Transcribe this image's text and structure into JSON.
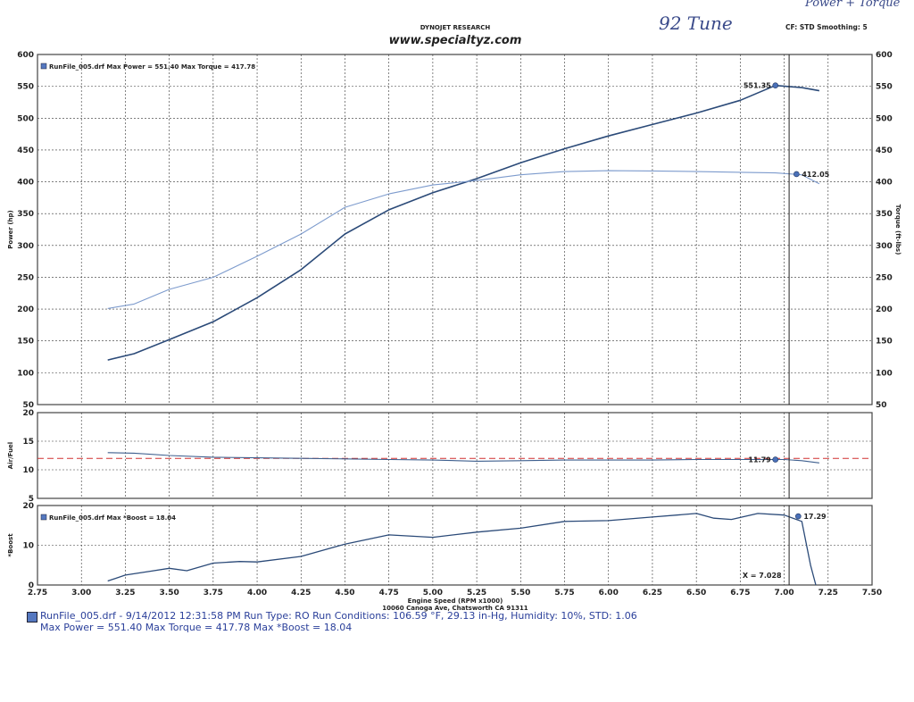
{
  "header": {
    "title": "DYNOJET RESEARCH",
    "website": "www.specialtyz.com",
    "settings": "CF: STD  Smoothing: 5",
    "handwritten_label": "92 Tune",
    "handwritten_note": "Power + Torque"
  },
  "footer": {
    "line1": "RunFile_005.drf - 9/14/2012 12:31:58 PM  Run Type: RO  Run Conditions: 106.59 °F, 29.13 in-Hg, Humidity: 10%, STD: 1.06",
    "line2": "Max Power = 551.40   Max Torque = 417.78   Max *Boost = 18.04"
  },
  "colors": {
    "power": "#2b4a78",
    "torque": "#7d9bcd",
    "afr": "#3e5f8e",
    "boost": "#2b4a78",
    "ref_line": "#d03030",
    "grid": "#333333",
    "cursor": "#222222"
  },
  "chart_data": [
    {
      "type": "line",
      "panel": "power-torque",
      "legend": "RunFile_005.drf Max Power = 551.40   Max Torque = 417.78",
      "ylabel_left": "Power (hp)",
      "ylabel_right": "Torque (ft-lbs)",
      "ylim": [
        50,
        600
      ],
      "yticks": [
        "600",
        "550",
        "500",
        "450",
        "400",
        "350",
        "300",
        "250",
        "200",
        "150",
        "100",
        "50"
      ],
      "series": [
        {
          "name": "Power",
          "x": [
            3.15,
            3.3,
            3.5,
            3.75,
            4.0,
            4.25,
            4.5,
            4.75,
            5.0,
            5.25,
            5.5,
            5.75,
            6.0,
            6.25,
            6.5,
            6.75,
            6.95,
            7.1,
            7.2
          ],
          "y": [
            120,
            130,
            152,
            180,
            218,
            262,
            318,
            356,
            383,
            405,
            430,
            452,
            472,
            490,
            508,
            528,
            551.35,
            548,
            543
          ]
        },
        {
          "name": "Torque",
          "x": [
            3.15,
            3.3,
            3.5,
            3.75,
            4.0,
            4.25,
            4.5,
            4.75,
            5.0,
            5.25,
            5.5,
            5.75,
            6.0,
            6.25,
            6.5,
            6.75,
            6.95,
            7.1,
            7.2
          ],
          "y": [
            201,
            208,
            231,
            250,
            283,
            318,
            360,
            381,
            395,
            402,
            411,
            416,
            417.5,
            417,
            416,
            415,
            414,
            411,
            397
          ]
        }
      ],
      "markers": [
        {
          "label": "551.35",
          "x": 6.95,
          "y": 551.35
        },
        {
          "label": "412.05",
          "x": 7.07,
          "y": 412.05
        }
      ]
    },
    {
      "type": "line",
      "panel": "air-fuel",
      "ylabel": "Air/Fuel",
      "ylim": [
        5,
        20
      ],
      "yticks": [
        "20",
        "15",
        "10",
        "5"
      ],
      "reference_line": 12,
      "series": [
        {
          "name": "Air/Fuel",
          "x": [
            3.15,
            3.3,
            3.5,
            3.75,
            4.0,
            4.25,
            4.5,
            4.75,
            5.0,
            5.25,
            5.5,
            5.75,
            6.0,
            6.25,
            6.5,
            6.75,
            7.0,
            7.1,
            7.2
          ],
          "y": [
            13.0,
            12.9,
            12.5,
            12.2,
            12.1,
            12.0,
            11.9,
            11.8,
            11.7,
            11.5,
            11.6,
            11.7,
            11.7,
            11.7,
            11.8,
            11.8,
            11.8,
            11.6,
            11.2
          ]
        }
      ],
      "markers": [
        {
          "label": "11.79",
          "x": 6.95,
          "y": 11.79
        }
      ]
    },
    {
      "type": "line",
      "panel": "boost",
      "legend": "RunFile_005.drf Max *Boost = 18.04",
      "ylabel": "*Boost",
      "ylim": [
        0,
        20
      ],
      "yticks": [
        "20",
        "10",
        "0"
      ],
      "series": [
        {
          "name": "*Boost",
          "x": [
            3.15,
            3.25,
            3.4,
            3.5,
            3.6,
            3.75,
            3.9,
            4.0,
            4.25,
            4.5,
            4.75,
            5.0,
            5.25,
            5.5,
            5.75,
            6.0,
            6.25,
            6.5,
            6.6,
            6.7,
            6.85,
            7.0,
            7.1,
            7.15,
            7.18
          ],
          "y": [
            1,
            2.5,
            3.5,
            4.2,
            3.6,
            5.5,
            5.9,
            5.8,
            7.2,
            10.3,
            12.6,
            12.0,
            13.3,
            14.3,
            16.0,
            16.2,
            17.1,
            18.0,
            16.8,
            16.5,
            18.0,
            17.6,
            16.0,
            5.0,
            0
          ]
        }
      ],
      "markers": [
        {
          "label": "17.29",
          "x": 7.08,
          "y": 17.29
        },
        {
          "label": "X = 7.028",
          "x": 7.0,
          "y": 2.5
        }
      ]
    }
  ],
  "xaxis": {
    "label": "Engine Speed (RPM x1000)",
    "sublabel": "10060 Canoga Ave, Chatsworth CA 91311",
    "min": 2.75,
    "max": 7.5,
    "ticks": [
      "2.75",
      "3.00",
      "3.25",
      "3.50",
      "3.75",
      "4.00",
      "4.25",
      "4.50",
      "4.75",
      "5.00",
      "5.25",
      "5.50",
      "5.75",
      "6.00",
      "6.25",
      "6.50",
      "6.75",
      "7.00",
      "7.25",
      "7.50"
    ],
    "cursor": 7.028
  }
}
